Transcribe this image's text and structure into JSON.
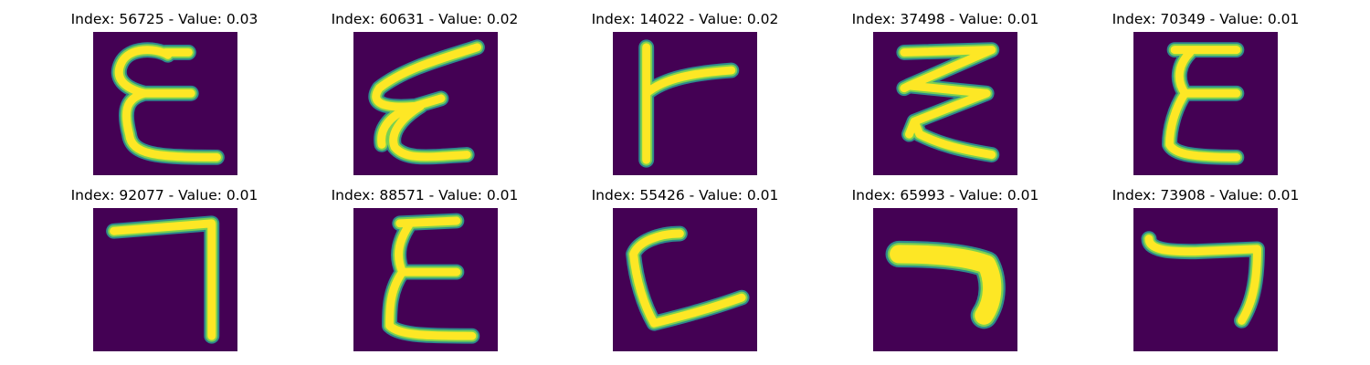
{
  "colors": {
    "background": "#440154",
    "stroke_edge": "#2e8a8c",
    "stroke_mid": "#7ad151",
    "stroke_core": "#fde725"
  },
  "panels": [
    {
      "title": "Index: 56725 - Value: 0.03",
      "glyph": "epsilon"
    },
    {
      "title": "Index: 60631 - Value: 0.02",
      "glyph": "epsilon-slanted"
    },
    {
      "title": "Index: 14022 - Value: 0.02",
      "glyph": "r-shape"
    },
    {
      "title": "Index: 37498 - Value: 0.01",
      "glyph": "zigzag"
    },
    {
      "title": "Index: 70349 - Value: 0.01",
      "glyph": "epsilon"
    },
    {
      "title": "Index: 92077 - Value: 0.01",
      "glyph": "seven-corner"
    },
    {
      "title": "Index: 88571 - Value: 0.01",
      "glyph": "epsilon"
    },
    {
      "title": "Index: 55426 - Value: 0.01",
      "glyph": "c-shape"
    },
    {
      "title": "Index: 65993 - Value: 0.01",
      "glyph": "boomerang"
    },
    {
      "title": "Index: 73908 - Value: 0.01",
      "glyph": "seven-corner-thin"
    }
  ]
}
